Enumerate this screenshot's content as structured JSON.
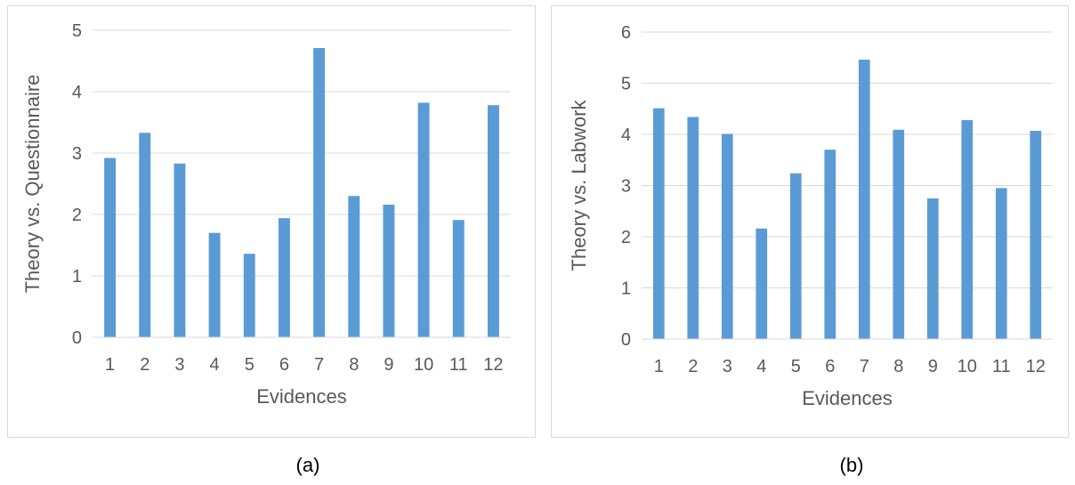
{
  "chart_data": [
    {
      "type": "bar",
      "title": "",
      "xlabel": "Evidences",
      "ylabel": "Theory vs. Questionnaire",
      "categories": [
        "1",
        "2",
        "3",
        "4",
        "5",
        "6",
        "7",
        "8",
        "9",
        "10",
        "11",
        "12"
      ],
      "values": [
        2.92,
        3.33,
        2.83,
        1.7,
        1.36,
        1.94,
        4.71,
        2.3,
        2.16,
        3.82,
        1.91,
        3.78
      ],
      "ylim": [
        0,
        5
      ],
      "yticks": [
        "0",
        "1",
        "2",
        "3",
        "4",
        "5"
      ],
      "grid": true,
      "bar_color": "#5b9bd5",
      "grid_color": "#d9d9d9"
    },
    {
      "type": "bar",
      "title": "",
      "xlabel": "Evidences",
      "ylabel": "Theory vs. Labwork",
      "categories": [
        "1",
        "2",
        "3",
        "4",
        "5",
        "6",
        "7",
        "8",
        "9",
        "10",
        "11",
        "12"
      ],
      "values": [
        4.51,
        4.34,
        4.01,
        2.16,
        3.24,
        3.7,
        5.46,
        4.09,
        2.75,
        4.28,
        2.95,
        4.07
      ],
      "ylim": [
        0,
        6
      ],
      "yticks": [
        "0",
        "1",
        "2",
        "3",
        "4",
        "5",
        "6"
      ],
      "grid": true,
      "bar_color": "#5b9bd5",
      "grid_color": "#d9d9d9"
    }
  ],
  "captions": {
    "a": "(a)",
    "b": "(b)"
  }
}
